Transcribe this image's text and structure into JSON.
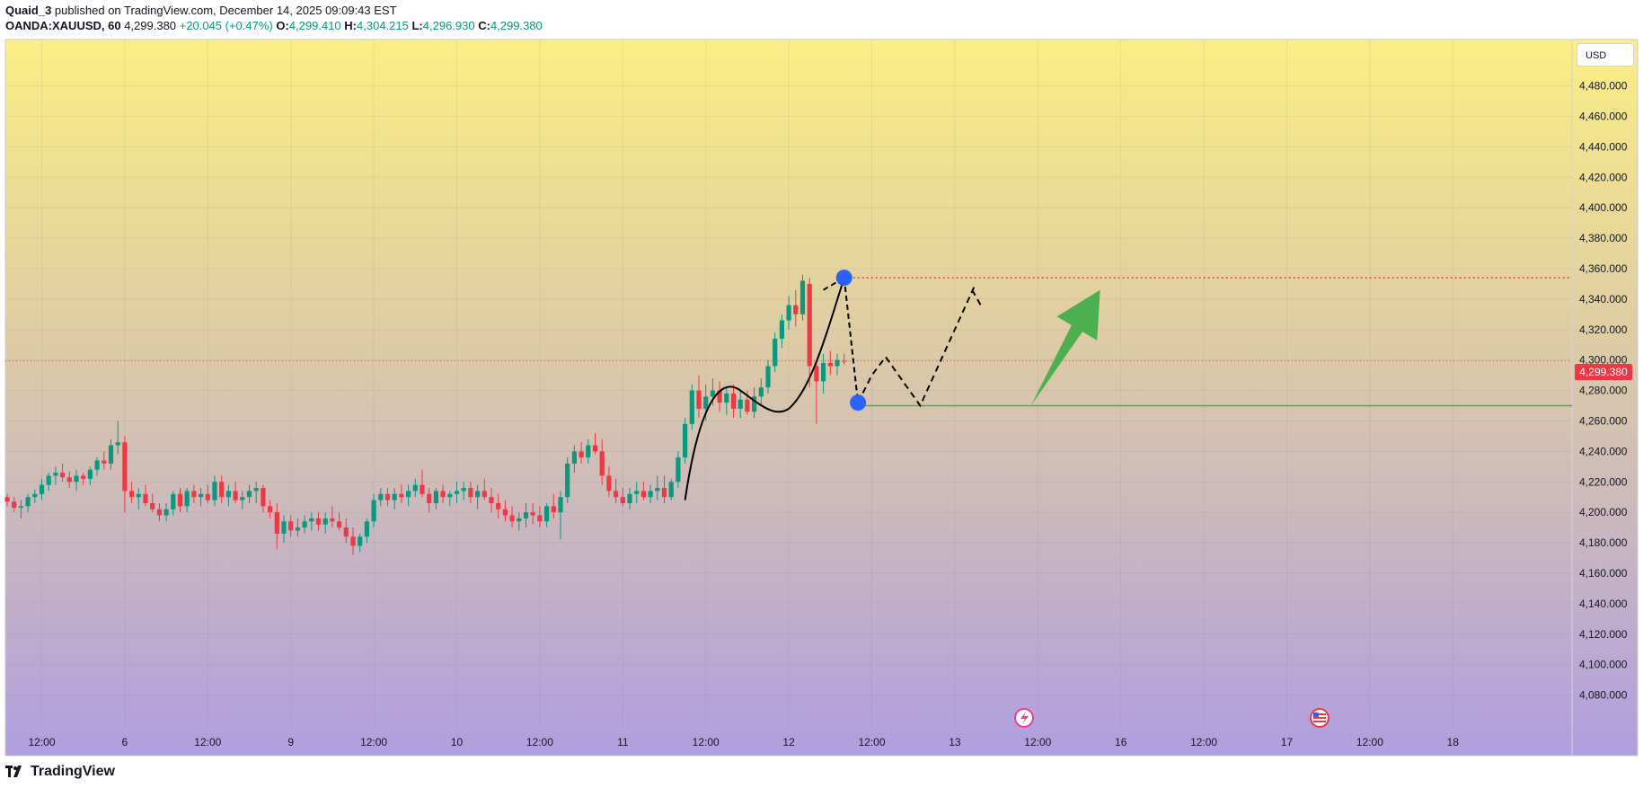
{
  "header": {
    "publisher": "Quaid_3",
    "published_text": "published on TradingView.com, December 14, 2025 09:09:43 EST",
    "symbol": "OANDA:XAUUSD, 60",
    "last": "4,299.380",
    "change": "+20.045 (+0.47%)",
    "o_label": "O:",
    "o_value": "4,299.410",
    "h_label": "H:",
    "h_value": "4,304.215",
    "l_label": "L:",
    "l_value": "4,296.930",
    "c_label": "C:",
    "c_value": "4,299.380"
  },
  "currency": "USD",
  "current_price_label": "4,299.380",
  "footer": {
    "brand": "TradingView"
  },
  "colors": {
    "up": "#089981",
    "down": "#f23645",
    "bg_top": "#fbee84",
    "bg_bottom": "#b09ee0",
    "arrow": "#4caf50",
    "support": "#4caf50",
    "resistance": "#f23645",
    "marker": "#2962ff"
  },
  "chart_data": {
    "type": "candlestick",
    "symbol": "OANDA:XAUUSD",
    "interval": "60",
    "currency": "USD",
    "ylim": [
      4060,
      4500
    ],
    "y_ticks": [
      4080,
      4100,
      4120,
      4140,
      4160,
      4180,
      4200,
      4220,
      4240,
      4260,
      4280,
      4300,
      4320,
      4340,
      4360,
      4380,
      4400,
      4420,
      4440,
      4460,
      4480
    ],
    "y_tick_labels": [
      "4,080.000",
      "4,100.000",
      "4,120.000",
      "4,140.000",
      "4,160.000",
      "4,180.000",
      "4,200.000",
      "4,220.000",
      "4,240.000",
      "4,260.000",
      "4,280.000",
      "4,300.000",
      "4,320.000",
      "4,340.000",
      "4,360.000",
      "4,380.000",
      "4,400.000",
      "4,420.000",
      "4,440.000",
      "4,460.000",
      "4,480.000"
    ],
    "x_ticks": [
      {
        "label": "12:00",
        "bar": 5
      },
      {
        "label": "6",
        "bar": 17
      },
      {
        "label": "12:00",
        "bar": 29
      },
      {
        "label": "9",
        "bar": 41
      },
      {
        "label": "12:00",
        "bar": 53
      },
      {
        "label": "10",
        "bar": 65
      },
      {
        "label": "12:00",
        "bar": 77
      },
      {
        "label": "11",
        "bar": 89
      },
      {
        "label": "12:00",
        "bar": 101
      },
      {
        "label": "12",
        "bar": 113
      },
      {
        "label": "12:00",
        "bar": 125
      },
      {
        "label": "13",
        "bar": 137
      },
      {
        "label": "12:00",
        "bar": 149
      },
      {
        "label": "16",
        "bar": 161
      },
      {
        "label": "12:00",
        "bar": 173
      },
      {
        "label": "17",
        "bar": 185
      },
      {
        "label": "12:00",
        "bar": 197
      },
      {
        "label": "18",
        "bar": 209
      }
    ],
    "bars_total_span": 220,
    "candles": [
      [
        4210,
        4212,
        4204,
        4207
      ],
      [
        4207,
        4210,
        4200,
        4203
      ],
      [
        4203,
        4208,
        4196,
        4204
      ],
      [
        4204,
        4212,
        4200,
        4210
      ],
      [
        4210,
        4215,
        4206,
        4212
      ],
      [
        4212,
        4222,
        4208,
        4218
      ],
      [
        4218,
        4226,
        4214,
        4224
      ],
      [
        4224,
        4230,
        4218,
        4226
      ],
      [
        4226,
        4232,
        4220,
        4223
      ],
      [
        4223,
        4227,
        4216,
        4220
      ],
      [
        4220,
        4228,
        4214,
        4224
      ],
      [
        4224,
        4226,
        4218,
        4222
      ],
      [
        4222,
        4230,
        4218,
        4228
      ],
      [
        4228,
        4236,
        4224,
        4234
      ],
      [
        4234,
        4240,
        4228,
        4232
      ],
      [
        4232,
        4248,
        4228,
        4244
      ],
      [
        4244,
        4260,
        4238,
        4246
      ],
      [
        4246,
        4250,
        4200,
        4214
      ],
      [
        4214,
        4220,
        4206,
        4210
      ],
      [
        4210,
        4216,
        4202,
        4212
      ],
      [
        4212,
        4218,
        4204,
        4206
      ],
      [
        4206,
        4212,
        4200,
        4202
      ],
      [
        4202,
        4206,
        4194,
        4198
      ],
      [
        4198,
        4206,
        4194,
        4202
      ],
      [
        4202,
        4214,
        4198,
        4212
      ],
      [
        4212,
        4216,
        4200,
        4204
      ],
      [
        4204,
        4216,
        4200,
        4214
      ],
      [
        4214,
        4218,
        4206,
        4210
      ],
      [
        4210,
        4216,
        4204,
        4212
      ],
      [
        4212,
        4218,
        4206,
        4208
      ],
      [
        4208,
        4224,
        4204,
        4220
      ],
      [
        4220,
        4224,
        4206,
        4210
      ],
      [
        4210,
        4218,
        4204,
        4214
      ],
      [
        4214,
        4220,
        4206,
        4208
      ],
      [
        4208,
        4214,
        4202,
        4210
      ],
      [
        4210,
        4218,
        4206,
        4214
      ],
      [
        4214,
        4220,
        4206,
        4216
      ],
      [
        4216,
        4218,
        4200,
        4204
      ],
      [
        4204,
        4208,
        4196,
        4200
      ],
      [
        4200,
        4206,
        4176,
        4186
      ],
      [
        4186,
        4198,
        4180,
        4194
      ],
      [
        4194,
        4198,
        4184,
        4188
      ],
      [
        4188,
        4196,
        4184,
        4190
      ],
      [
        4190,
        4198,
        4186,
        4194
      ],
      [
        4194,
        4200,
        4188,
        4196
      ],
      [
        4196,
        4200,
        4188,
        4192
      ],
      [
        4192,
        4200,
        4186,
        4196
      ],
      [
        4196,
        4204,
        4190,
        4194
      ],
      [
        4194,
        4200,
        4188,
        4190
      ],
      [
        4190,
        4196,
        4180,
        4184
      ],
      [
        4184,
        4190,
        4172,
        4178
      ],
      [
        4178,
        4186,
        4174,
        4184
      ],
      [
        4184,
        4196,
        4180,
        4194
      ],
      [
        4194,
        4212,
        4190,
        4208
      ],
      [
        4208,
        4216,
        4204,
        4212
      ],
      [
        4212,
        4216,
        4204,
        4208
      ],
      [
        4208,
        4216,
        4202,
        4212
      ],
      [
        4212,
        4218,
        4206,
        4210
      ],
      [
        4210,
        4218,
        4204,
        4214
      ],
      [
        4214,
        4222,
        4210,
        4218
      ],
      [
        4218,
        4228,
        4210,
        4212
      ],
      [
        4212,
        4216,
        4200,
        4206
      ],
      [
        4206,
        4216,
        4202,
        4214
      ],
      [
        4214,
        4218,
        4206,
        4210
      ],
      [
        4210,
        4214,
        4204,
        4212
      ],
      [
        4212,
        4220,
        4206,
        4214
      ],
      [
        4214,
        4220,
        4208,
        4216
      ],
      [
        4216,
        4220,
        4206,
        4210
      ],
      [
        4210,
        4218,
        4202,
        4214
      ],
      [
        4214,
        4222,
        4208,
        4210
      ],
      [
        4210,
        4216,
        4200,
        4206
      ],
      [
        4206,
        4212,
        4196,
        4202
      ],
      [
        4202,
        4208,
        4194,
        4198
      ],
      [
        4198,
        4204,
        4190,
        4194
      ],
      [
        4194,
        4200,
        4188,
        4196
      ],
      [
        4196,
        4206,
        4190,
        4200
      ],
      [
        4200,
        4206,
        4192,
        4198
      ],
      [
        4198,
        4204,
        4190,
        4194
      ],
      [
        4194,
        4206,
        4190,
        4204
      ],
      [
        4204,
        4212,
        4196,
        4200
      ],
      [
        4200,
        4214,
        4182,
        4210
      ],
      [
        4210,
        4236,
        4206,
        4232
      ],
      [
        4232,
        4244,
        4226,
        4240
      ],
      [
        4240,
        4246,
        4232,
        4236
      ],
      [
        4236,
        4248,
        4232,
        4244
      ],
      [
        4244,
        4252,
        4238,
        4240
      ],
      [
        4240,
        4248,
        4218,
        4224
      ],
      [
        4224,
        4230,
        4210,
        4214
      ],
      [
        4214,
        4222,
        4206,
        4210
      ],
      [
        4210,
        4216,
        4204,
        4206
      ],
      [
        4206,
        4216,
        4202,
        4212
      ],
      [
        4212,
        4220,
        4206,
        4214
      ],
      [
        4214,
        4220,
        4208,
        4210
      ],
      [
        4210,
        4218,
        4206,
        4214
      ],
      [
        4214,
        4224,
        4208,
        4216
      ],
      [
        4216,
        4224,
        4206,
        4210
      ],
      [
        4210,
        4222,
        4208,
        4220
      ],
      [
        4220,
        4240,
        4216,
        4236
      ],
      [
        4236,
        4262,
        4232,
        4258
      ],
      [
        4258,
        4284,
        4254,
        4280
      ],
      [
        4280,
        4290,
        4262,
        4268
      ],
      [
        4268,
        4284,
        4260,
        4276
      ],
      [
        4276,
        4288,
        4270,
        4280
      ],
      [
        4280,
        4286,
        4266,
        4272
      ],
      [
        4272,
        4282,
        4264,
        4278
      ],
      [
        4278,
        4284,
        4262,
        4268
      ],
      [
        4268,
        4280,
        4262,
        4274
      ],
      [
        4274,
        4280,
        4264,
        4266
      ],
      [
        4266,
        4282,
        4262,
        4276
      ],
      [
        4276,
        4288,
        4270,
        4282
      ],
      [
        4282,
        4300,
        4278,
        4296
      ],
      [
        4296,
        4318,
        4292,
        4314
      ],
      [
        4314,
        4330,
        4308,
        4326
      ],
      [
        4326,
        4342,
        4320,
        4336
      ],
      [
        4336,
        4346,
        4322,
        4330
      ],
      [
        4330,
        4356,
        4326,
        4352
      ],
      [
        4350,
        4354,
        4282,
        4296
      ],
      [
        4296,
        4300,
        4258,
        4286
      ],
      [
        4286,
        4304,
        4278,
        4298
      ],
      [
        4298,
        4306,
        4290,
        4296
      ],
      [
        4296,
        4304,
        4290,
        4300
      ],
      [
        4299.41,
        4304.215,
        4296.93,
        4299.38
      ]
    ],
    "annotations": {
      "resistance_level": 4354,
      "support_level": 4270,
      "current_price": 4299.38,
      "peak_marker": {
        "bar": 121,
        "price": 4354
      },
      "low_marker": {
        "bar": 123,
        "price": 4272
      },
      "projection_path": [
        [
          123,
          4272
        ],
        [
          125,
          4290
        ],
        [
          127,
          4302
        ],
        [
          132,
          4270
        ],
        [
          140,
          4350
        ]
      ],
      "arrow": {
        "from": [
          148,
          4270
        ],
        "to": [
          158,
          4346
        ]
      }
    }
  }
}
